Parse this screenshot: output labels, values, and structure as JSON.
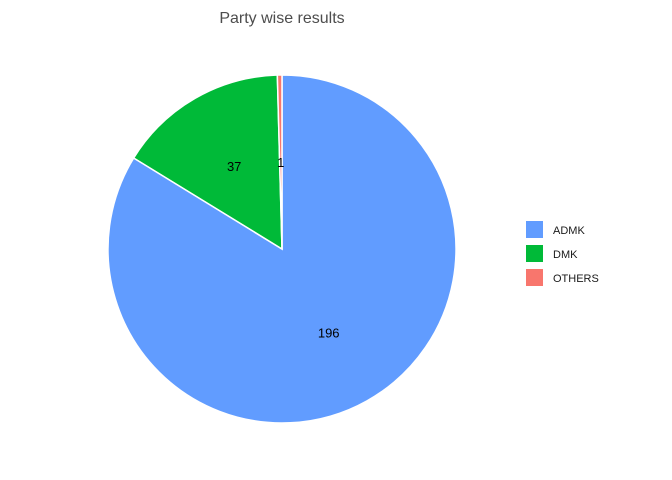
{
  "chart_data": {
    "type": "pie",
    "title": "Party wise results",
    "categories": [
      "ADMK",
      "DMK",
      "OTHERS"
    ],
    "values": [
      196,
      37,
      1
    ],
    "colors": [
      "#619CFF",
      "#00BA38",
      "#F8766D"
    ],
    "legend_position": "right",
    "start": "top",
    "direction": "clockwise"
  }
}
